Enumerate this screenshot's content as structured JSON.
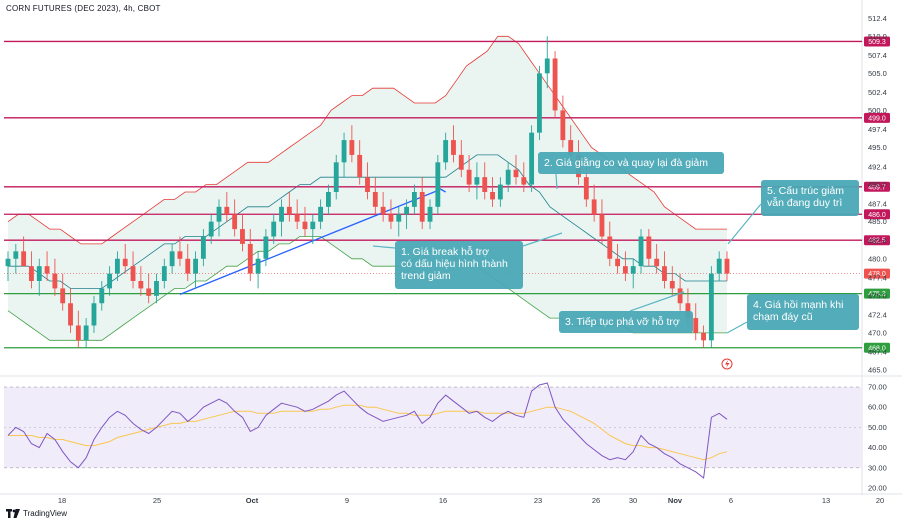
{
  "header": {
    "title": "CORN FUTURES (DEC 2023), 4h, CBOT"
  },
  "footer": {
    "brand": "TradingView"
  },
  "colors": {
    "resistance": "#c2185b",
    "support": "#2e9e3f",
    "up_candle": "#26a69a",
    "down_candle": "#ef5350",
    "bb_upper": "#e53935",
    "bb_lower": "#43a047",
    "bb_mid": "#1e7f8c",
    "bb_fill": "#e6f3f0",
    "trendline": "#2962ff",
    "annotation_bg": "#4aa8b5",
    "rsi_line": "#7e57c2",
    "rsi_ma": "#f9c74f",
    "rsi_band": "#f1ecfa"
  },
  "chart_data": {
    "type": "candlestick",
    "title": "CORN FUTURES (DEC 2023), 4h, CBOT",
    "x_ticks": [
      "18",
      "25",
      "Oct",
      "9",
      "16",
      "23",
      "26",
      "30",
      "Nov",
      "6",
      "13",
      "20"
    ],
    "y_ticks": [
      "512.4",
      "510.0",
      "507.4",
      "505.0",
      "502.4",
      "500.0",
      "497.4",
      "495.0",
      "492.4",
      "490.0",
      "487.4",
      "485.0",
      "482.4",
      "480.0",
      "477.4",
      "475.0",
      "472.4",
      "470.0",
      "467.4",
      "465.0"
    ],
    "ylim": [
      465,
      513
    ],
    "price_levels": [
      {
        "label": "509.3",
        "value": 509.3,
        "kind": "resistance"
      },
      {
        "label": "499.0",
        "value": 499.0,
        "kind": "resistance"
      },
      {
        "label": "489.7",
        "value": 489.7,
        "kind": "resistance"
      },
      {
        "label": "486.0",
        "value": 486.0,
        "kind": "resistance"
      },
      {
        "label": "482.5",
        "value": 482.5,
        "kind": "resistance"
      },
      {
        "label": "478.0",
        "value": 478.0,
        "kind": "current"
      },
      {
        "label": "475.3",
        "value": 475.3,
        "kind": "support"
      },
      {
        "label": "468.0",
        "value": 468.0,
        "kind": "support"
      }
    ],
    "annotations": [
      {
        "id": "a1",
        "text": [
          "1. Giá break hỗ trợ",
          "có dấu hiệu hình thành",
          "trend giảm"
        ]
      },
      {
        "id": "a2",
        "text": [
          "2. Giá giằng co và quay lại đà giảm"
        ]
      },
      {
        "id": "a3",
        "text": [
          "3. Tiếp tục phá vỡ hỗ trợ"
        ]
      },
      {
        "id": "a4",
        "text": [
          "4. Giá hồi mạnh khi",
          "chạm đáy cũ"
        ]
      },
      {
        "id": "a5",
        "text": [
          "5. Cấu trúc giảm",
          "vẫn đang duy trì"
        ]
      }
    ],
    "candles": [
      [
        479,
        481,
        477,
        480
      ],
      [
        480,
        482,
        478,
        481
      ],
      [
        481,
        483,
        479,
        479
      ],
      [
        479,
        481,
        476,
        477
      ],
      [
        477,
        480,
        475,
        479
      ],
      [
        479,
        481,
        477,
        478
      ],
      [
        478,
        480,
        475,
        476
      ],
      [
        476,
        478,
        473,
        474
      ],
      [
        474,
        476,
        470,
        471
      ],
      [
        471,
        473,
        468,
        469
      ],
      [
        469,
        472,
        468,
        471
      ],
      [
        471,
        475,
        470,
        474
      ],
      [
        474,
        477,
        473,
        476
      ],
      [
        476,
        479,
        475,
        478
      ],
      [
        478,
        481,
        477,
        480
      ],
      [
        480,
        482,
        478,
        479
      ],
      [
        479,
        481,
        476,
        477
      ],
      [
        477,
        479,
        475,
        476
      ],
      [
        476,
        478,
        474,
        475
      ],
      [
        475,
        478,
        474,
        477
      ],
      [
        477,
        480,
        476,
        479
      ],
      [
        479,
        482,
        478,
        481
      ],
      [
        481,
        483,
        479,
        480
      ],
      [
        480,
        482,
        477,
        478
      ],
      [
        478,
        481,
        476,
        480
      ],
      [
        480,
        484,
        479,
        483
      ],
      [
        483,
        486,
        482,
        485
      ],
      [
        485,
        488,
        483,
        487
      ],
      [
        487,
        489,
        485,
        486
      ],
      [
        486,
        488,
        483,
        484
      ],
      [
        484,
        486,
        481,
        482
      ],
      [
        482,
        484,
        477,
        478
      ],
      [
        478,
        481,
        476,
        480
      ],
      [
        480,
        484,
        479,
        483
      ],
      [
        483,
        486,
        482,
        485
      ],
      [
        485,
        488,
        483,
        487
      ],
      [
        487,
        489,
        485,
        486
      ],
      [
        486,
        488,
        484,
        485
      ],
      [
        485,
        487,
        483,
        484
      ],
      [
        484,
        486,
        482,
        485
      ],
      [
        485,
        488,
        484,
        487
      ],
      [
        487,
        490,
        486,
        489
      ],
      [
        489,
        494,
        488,
        493
      ],
      [
        493,
        497,
        491,
        496
      ],
      [
        496,
        498,
        493,
        494
      ],
      [
        494,
        496,
        490,
        491
      ],
      [
        491,
        493,
        488,
        489
      ],
      [
        489,
        491,
        486,
        487
      ],
      [
        487,
        489,
        485,
        486
      ],
      [
        486,
        488,
        484,
        485
      ],
      [
        485,
        487,
        483,
        486
      ],
      [
        486,
        488,
        484,
        487
      ],
      [
        487,
        490,
        486,
        489
      ],
      [
        489,
        491,
        484,
        485
      ],
      [
        485,
        488,
        484,
        487
      ],
      [
        487,
        494,
        486,
        493
      ],
      [
        493,
        497,
        492,
        496
      ],
      [
        496,
        498,
        493,
        494
      ],
      [
        494,
        496,
        491,
        492
      ],
      [
        492,
        494,
        489,
        490
      ],
      [
        490,
        493,
        488,
        491
      ],
      [
        491,
        493,
        488,
        489
      ],
      [
        489,
        491,
        487,
        488
      ],
      [
        488,
        491,
        487,
        490
      ],
      [
        490,
        493,
        489,
        492
      ],
      [
        492,
        494,
        490,
        491
      ],
      [
        491,
        493,
        489,
        490
      ],
      [
        490,
        498,
        489,
        497
      ],
      [
        497,
        506,
        496,
        505
      ],
      [
        505,
        510,
        503,
        507
      ],
      [
        507,
        508,
        499,
        500
      ],
      [
        500,
        502,
        495,
        496
      ],
      [
        496,
        498,
        493,
        494
      ],
      [
        494,
        496,
        490,
        491
      ],
      [
        491,
        493,
        487,
        488
      ],
      [
        488,
        490,
        485,
        486
      ],
      [
        486,
        488,
        482,
        483
      ],
      [
        483,
        485,
        479,
        480
      ],
      [
        480,
        482,
        478,
        479
      ],
      [
        479,
        481,
        477,
        478
      ],
      [
        478,
        480,
        476,
        479
      ],
      [
        479,
        484,
        478,
        483
      ],
      [
        483,
        484,
        479,
        480
      ],
      [
        480,
        482,
        478,
        479
      ],
      [
        479,
        481,
        476,
        477
      ],
      [
        477,
        479,
        475,
        476
      ],
      [
        476,
        478,
        473,
        474
      ],
      [
        474,
        476,
        471,
        472
      ],
      [
        472,
        474,
        469,
        470
      ],
      [
        470,
        471,
        468,
        469
      ],
      [
        469,
        479,
        468,
        478
      ],
      [
        478,
        481,
        477,
        480
      ],
      [
        480,
        481,
        477,
        478
      ]
    ],
    "bollinger": {
      "upper": [
        485,
        486,
        486,
        485,
        484,
        484,
        483,
        482,
        482,
        482,
        483,
        484,
        485,
        486,
        487,
        488,
        488,
        489,
        489,
        490,
        490,
        491,
        492,
        493,
        493,
        493,
        494,
        495,
        496,
        497,
        498,
        500,
        501,
        502,
        502,
        503,
        503,
        503,
        502,
        501,
        501,
        501,
        502,
        504,
        506,
        507,
        508,
        510,
        510,
        509,
        507,
        505,
        503,
        501,
        499,
        497,
        495,
        494,
        493,
        492,
        491,
        490,
        489,
        487,
        486,
        485,
        484,
        484,
        484,
        484
      ],
      "mid": [
        479,
        479,
        479,
        478,
        477,
        477,
        476,
        476,
        476,
        476,
        477,
        478,
        479,
        480,
        481,
        482,
        482,
        483,
        483,
        483,
        484,
        485,
        486,
        487,
        487,
        487,
        488,
        489,
        490,
        490,
        491,
        491,
        491,
        491,
        491,
        491,
        491,
        491,
        491,
        491,
        491,
        491,
        491,
        492,
        493,
        494,
        494,
        494,
        493,
        492,
        490,
        489,
        487,
        486,
        485,
        484,
        483,
        482,
        481,
        480,
        480,
        479,
        479,
        478,
        478,
        477,
        477,
        477,
        477,
        477
      ],
      "lower": [
        473,
        472,
        471,
        470,
        469,
        469,
        469,
        469,
        469,
        469,
        470,
        471,
        472,
        473,
        474,
        475,
        476,
        476,
        477,
        477,
        478,
        479,
        479,
        480,
        481,
        481,
        482,
        482,
        483,
        483,
        483,
        482,
        481,
        480,
        480,
        479,
        479,
        479,
        479,
        480,
        481,
        481,
        481,
        480,
        479,
        479,
        478,
        477,
        476,
        475,
        474,
        473,
        472,
        472,
        471,
        471,
        471,
        471,
        471,
        471,
        470,
        470,
        470,
        470,
        470,
        470,
        470,
        470,
        470,
        470
      ]
    },
    "rsi": {
      "ylim": [
        20,
        72
      ],
      "y_ticks": [
        "70.00",
        "60.00",
        "50.00",
        "40.00",
        "30.00",
        "20.00"
      ],
      "bands": [
        70,
        30
      ],
      "midline": 50,
      "values": [
        46,
        50,
        48,
        42,
        40,
        47,
        44,
        38,
        33,
        30,
        35,
        44,
        50,
        55,
        58,
        56,
        52,
        49,
        47,
        50,
        54,
        58,
        57,
        53,
        56,
        60,
        62,
        64,
        62,
        58,
        55,
        48,
        50,
        56,
        59,
        62,
        61,
        60,
        58,
        59,
        61,
        63,
        66,
        68,
        64,
        60,
        57,
        55,
        53,
        54,
        55,
        56,
        58,
        52,
        55,
        62,
        66,
        63,
        60,
        57,
        58,
        55,
        53,
        56,
        58,
        56,
        55,
        68,
        71,
        72,
        60,
        54,
        50,
        46,
        42,
        39,
        36,
        34,
        35,
        34,
        38,
        46,
        42,
        40,
        37,
        35,
        32,
        30,
        28,
        25,
        55,
        57,
        54
      ],
      "ma": [
        46,
        46,
        46,
        46,
        45,
        45,
        44,
        44,
        43,
        42,
        41,
        41,
        42,
        43,
        45,
        46,
        47,
        48,
        49,
        50,
        51,
        52,
        52,
        53,
        53,
        54,
        55,
        56,
        57,
        58,
        58,
        58,
        57,
        57,
        57,
        58,
        58,
        58,
        58,
        58,
        59,
        59,
        60,
        61,
        61,
        61,
        60,
        60,
        59,
        58,
        57,
        57,
        56,
        56,
        56,
        57,
        58,
        58,
        58,
        58,
        58,
        57,
        57,
        57,
        57,
        57,
        57,
        58,
        59,
        60,
        60,
        59,
        58,
        56,
        54,
        52,
        49,
        46,
        44,
        42,
        41,
        41,
        40,
        40,
        39,
        38,
        37,
        36,
        35,
        34,
        35,
        37,
        38
      ]
    }
  }
}
